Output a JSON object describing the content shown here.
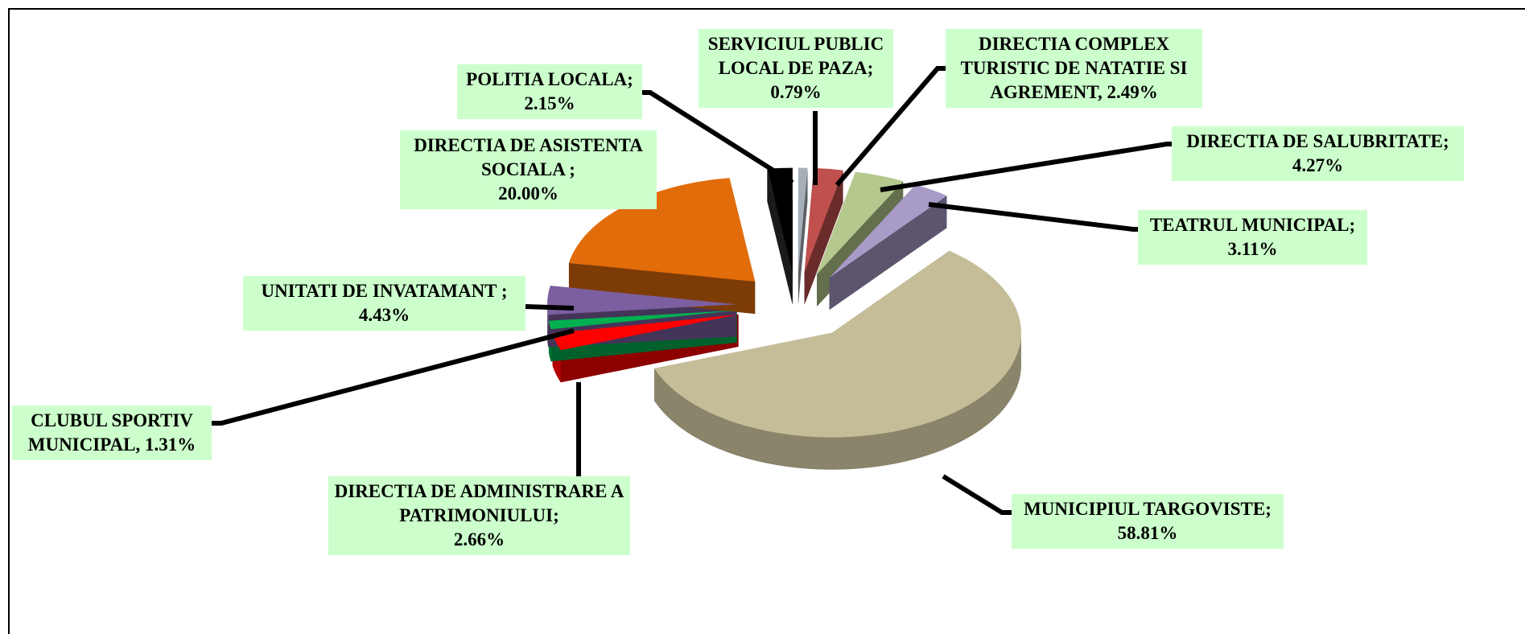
{
  "chart_data": {
    "type": "pie",
    "categories": [
      "SERVICIUL PUBLIC LOCAL DE PAZA;",
      "DIRECTIA COMPLEX TURISTIC DE NATATIE SI AGREMENT,",
      "DIRECTIA DE SALUBRITATE;",
      "TEATRUL MUNICIPAL;",
      "MUNICIPIUL TARGOVISTE;",
      "DIRECTIA DE ADMINISTRARE A PATRIMONIULUI;",
      "CLUBUL SPORTIV MUNICIPAL,",
      "UNITATI DE INVATAMANT ;",
      "DIRECTIA DE ASISTENTA SOCIALA ;",
      "POLITIA LOCALA;"
    ],
    "values": [
      0.79,
      2.49,
      4.27,
      3.11,
      58.81,
      2.66,
      1.31,
      4.43,
      20.0,
      2.15
    ],
    "value_labels": [
      "0.79%",
      "2.49%",
      "4.27%",
      "3.11%",
      "58.81%",
      "2.66%",
      "1.31%",
      "4.43%",
      "20.00%",
      "2.15%"
    ],
    "colors": [
      "#a6aeb8",
      "#c0504d",
      "#b5c98e",
      "#a99bc8",
      "#c4bd97",
      "#ff0000",
      "#00b050",
      "#7b5fa0",
      "#e36c0a",
      "#000000"
    ]
  }
}
